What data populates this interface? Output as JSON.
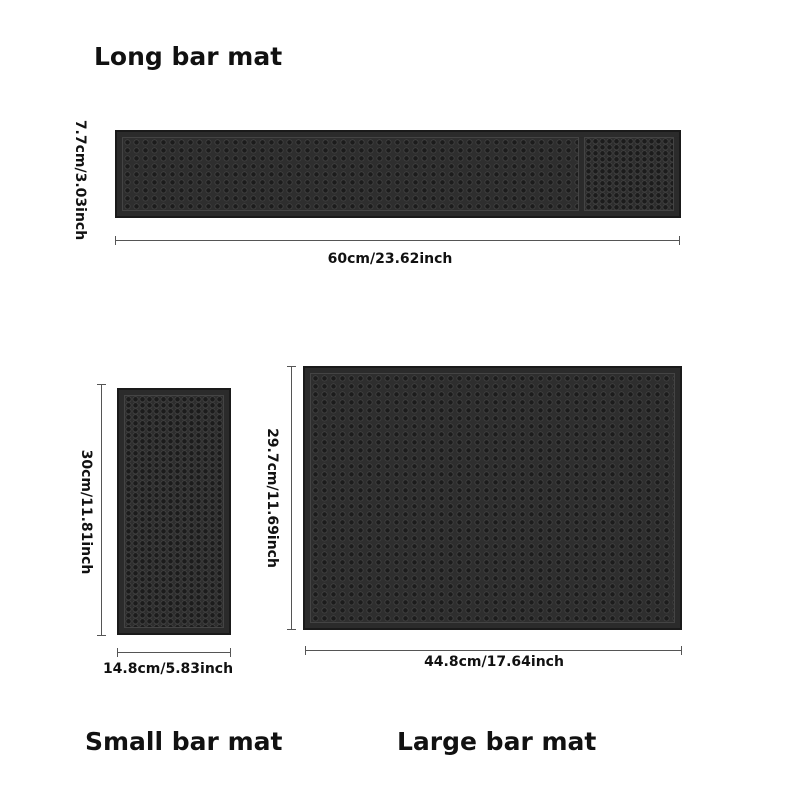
{
  "long_mat": {
    "title": "Long bar mat",
    "height_label": "7.7cm/3.03inch",
    "width_label": "60cm/23.62inch"
  },
  "small_mat": {
    "title": "Small bar mat",
    "height_label": "30cm/11.81inch",
    "width_label": "14.8cm/5.83inch"
  },
  "large_mat": {
    "title": "Large bar mat",
    "height_label": "29.7cm/11.69inch",
    "width_label": "44.8cm/17.64inch"
  },
  "colors": {
    "mat": "#2b2b2b",
    "background": "#ffffff"
  }
}
